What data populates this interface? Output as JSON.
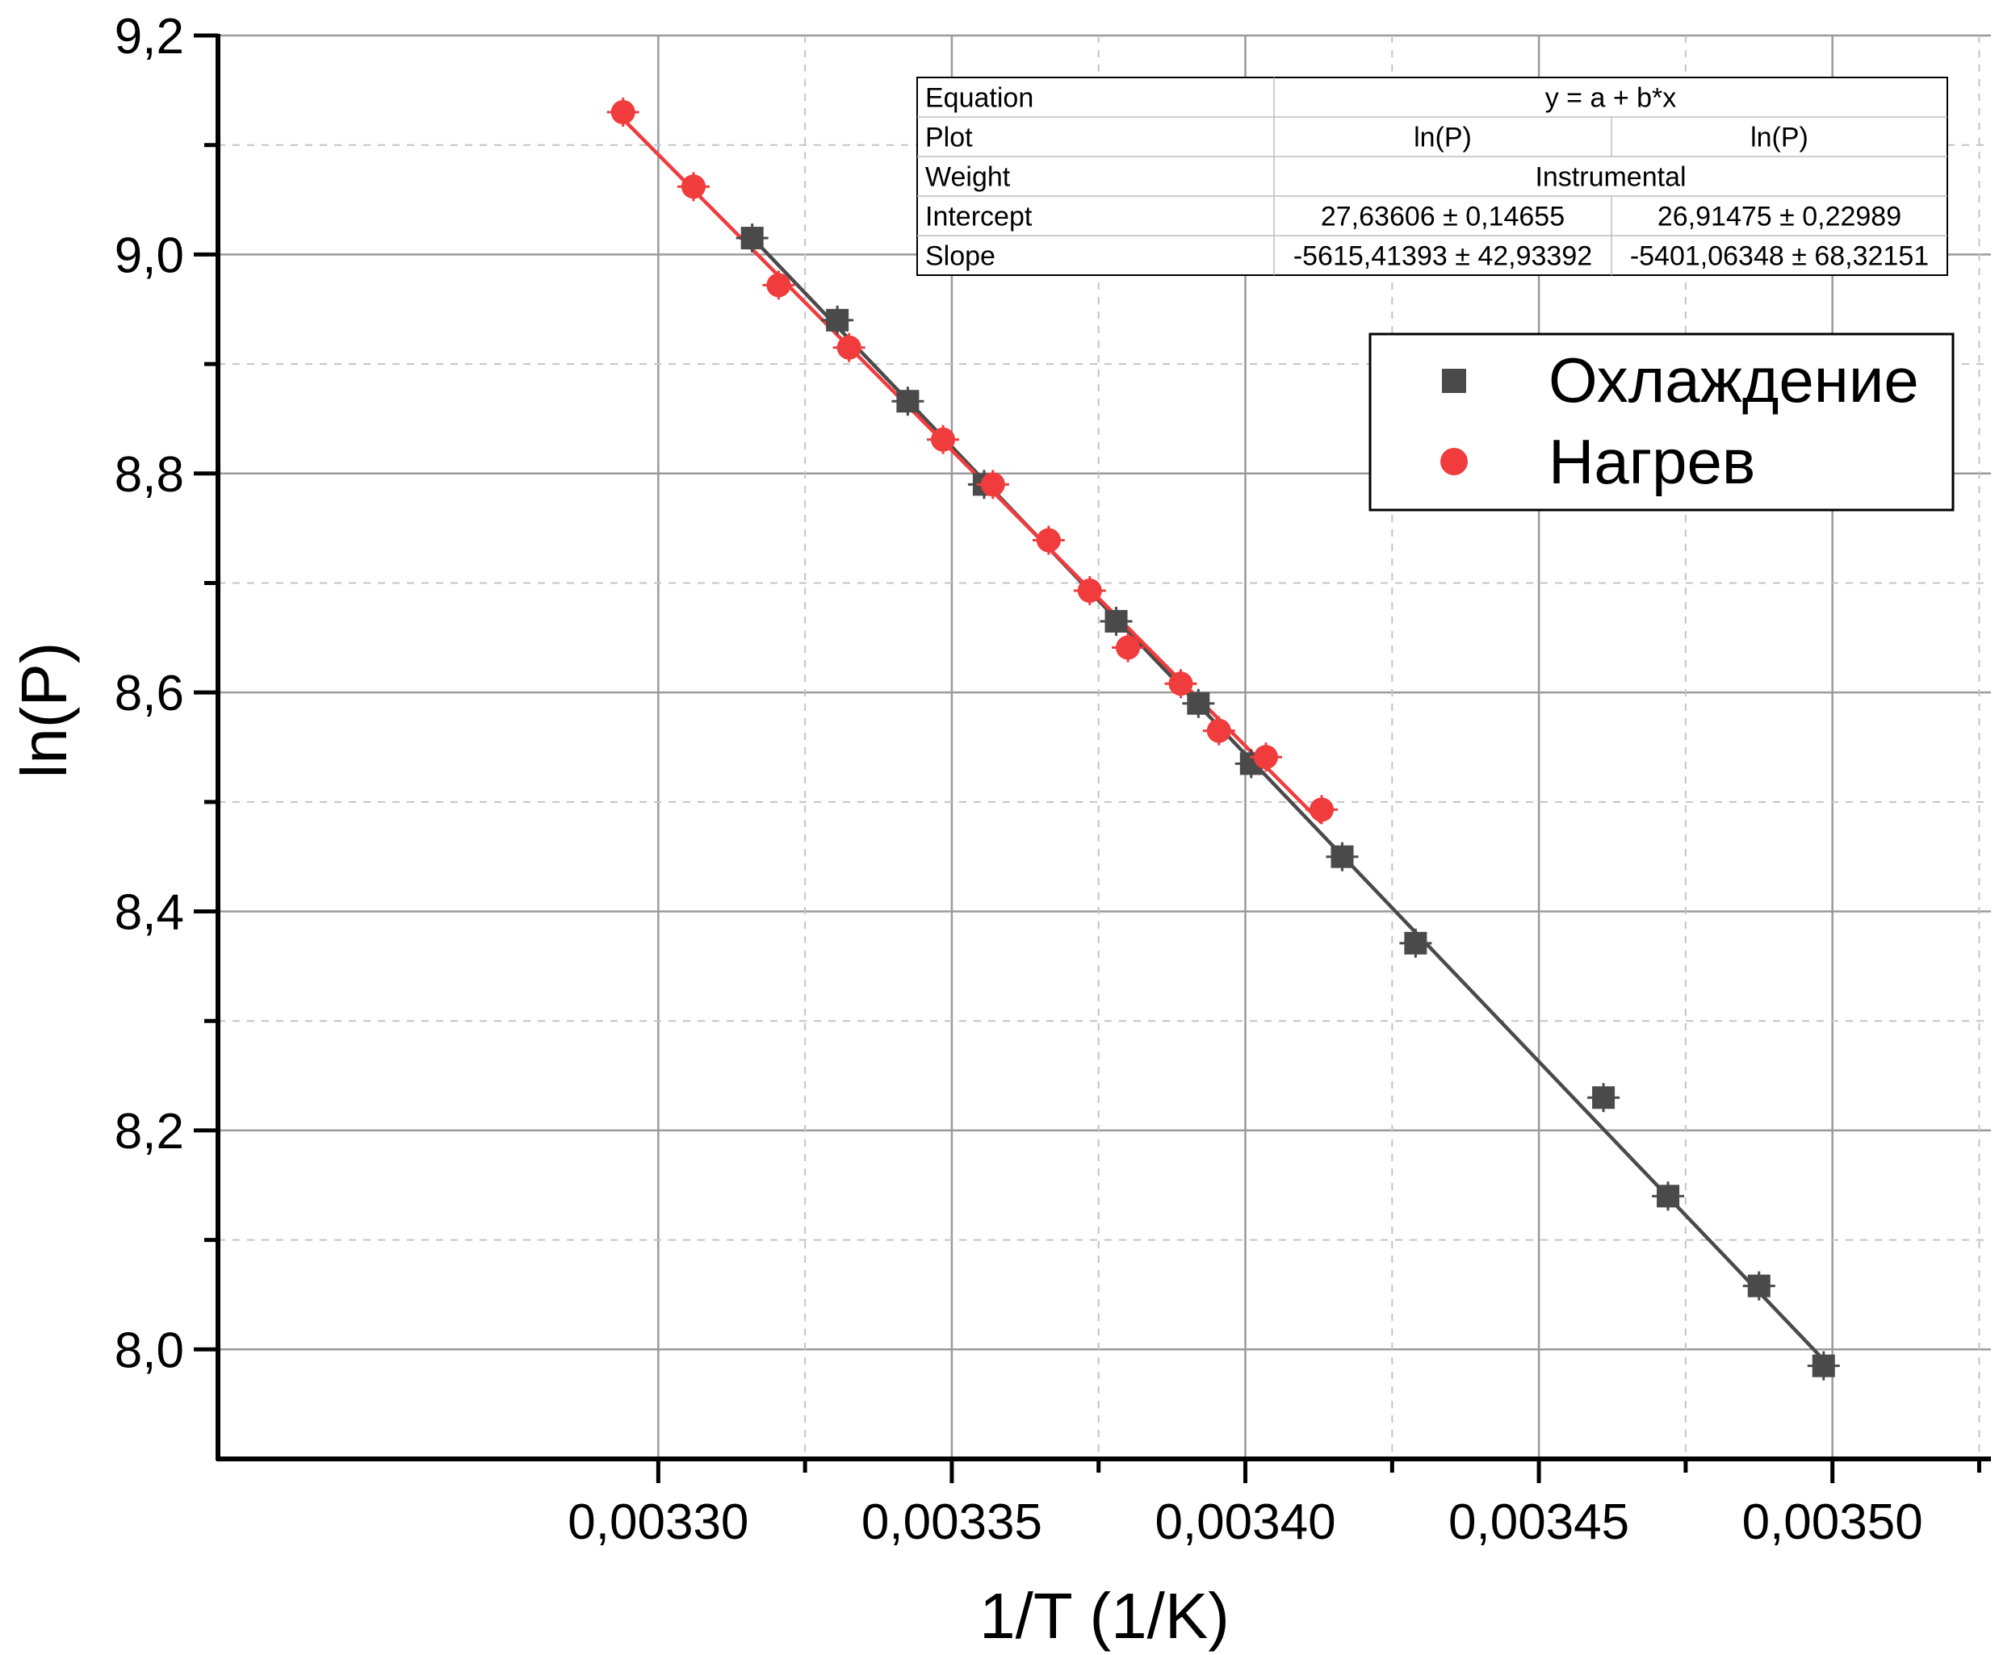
{
  "chart_data": {
    "type": "scatter",
    "xlabel": "1/T (1/K)",
    "ylabel": "ln(P)",
    "xlim": [
      0.003225,
      0.003527
    ],
    "ylim": [
      7.9,
      9.2
    ],
    "x_ticks": [
      0.0033,
      0.00335,
      0.0034,
      0.00345,
      0.0035
    ],
    "x_tick_labels": [
      "0,00330",
      "0,00335",
      "0,00340",
      "0,00345",
      "0,00350"
    ],
    "x_minor_ticks": [
      0.003325,
      0.003375,
      0.003425,
      0.003475,
      0.003525
    ],
    "y_ticks": [
      8.0,
      8.2,
      8.4,
      8.6,
      8.8,
      9.0,
      9.2
    ],
    "y_tick_labels": [
      "8,0",
      "8,2",
      "8,4",
      "8,6",
      "8,8",
      "9,0",
      "9,2"
    ],
    "y_minor_ticks": [
      8.1,
      8.3,
      8.5,
      8.7,
      8.9,
      9.1
    ],
    "grid": true,
    "legend_position": "top-right",
    "series": [
      {
        "name": "Охлаждение",
        "marker": "square",
        "color": "#4a4a4a",
        "points": [
          [
            0.003316,
            9.015
          ],
          [
            0.0033305,
            8.94
          ],
          [
            0.0033425,
            8.866
          ],
          [
            0.0033555,
            8.79
          ],
          [
            0.003378,
            8.665
          ],
          [
            0.003392,
            8.59
          ],
          [
            0.003401,
            8.535
          ],
          [
            0.0034165,
            8.45
          ],
          [
            0.003429,
            8.371
          ],
          [
            0.003461,
            8.23
          ],
          [
            0.003472,
            8.14
          ],
          [
            0.0034875,
            8.058
          ],
          [
            0.0034985,
            7.985
          ]
        ],
        "fit": {
          "intercept": 27.63606,
          "slope": -5615.41393,
          "x_range": [
            0.003316,
            0.0034985
          ]
        }
      },
      {
        "name": "Нагрев",
        "marker": "circle",
        "color": "#f03c3c",
        "points": [
          [
            0.003294,
            9.13
          ],
          [
            0.003306,
            9.062
          ],
          [
            0.0033205,
            8.972
          ],
          [
            0.0033325,
            8.915
          ],
          [
            0.0033485,
            8.831
          ],
          [
            0.003357,
            8.79
          ],
          [
            0.0033665,
            8.739
          ],
          [
            0.0033735,
            8.693
          ],
          [
            0.00338,
            8.641
          ],
          [
            0.003389,
            8.608
          ],
          [
            0.0033955,
            8.565
          ],
          [
            0.0034035,
            8.541
          ],
          [
            0.003413,
            8.493
          ]
        ],
        "fit": {
          "intercept": 26.91475,
          "slope": -5401.06348,
          "x_range": [
            0.003294,
            0.003413
          ]
        }
      }
    ],
    "fit_table": {
      "rows": [
        {
          "label": "Equation",
          "cells": [
            "y = a + b*x"
          ],
          "span": true
        },
        {
          "label": "Plot",
          "cells": [
            "ln(P)",
            "ln(P)"
          ],
          "span": false
        },
        {
          "label": "Weight",
          "cells": [
            "Instrumental"
          ],
          "span": true
        },
        {
          "label": "Intercept",
          "cells": [
            "27,63606 ± 0,14655",
            "26,91475 ± 0,22989"
          ],
          "span": false
        },
        {
          "label": "Slope",
          "cells": [
            "-5615,41393 ± 42,93392",
            "-5401,06348 ± 68,32151"
          ],
          "span": false
        }
      ]
    }
  }
}
